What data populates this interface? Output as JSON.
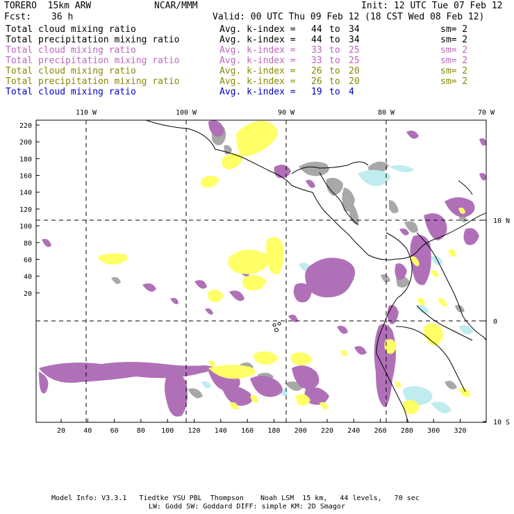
{
  "header": {
    "model": "TORERO  15km ARW",
    "org": "NCAR/MMM",
    "init": "Init: 12 UTC Tue 07 Feb 12",
    "fcst_label": "Fcst:",
    "fcst_value": "36 h",
    "valid": "Valid: 00 UTC Thu 09 Feb 12 (18 CST Wed 08 Feb 12)"
  },
  "legend": [
    {
      "field": "Total cloud mixing ratio",
      "kindex_label": "Avg. k-index =",
      "k_from": "44",
      "to": "to",
      "k_to": "34",
      "sm": "sm= 2",
      "color": "#000000"
    },
    {
      "field": "Total precipitation mixing ratio",
      "kindex_label": "Avg. k-index =",
      "k_from": "44",
      "to": "to",
      "k_to": "34",
      "sm": "sm= 2",
      "color": "#000000"
    },
    {
      "field": "Total cloud mixing ratio",
      "kindex_label": "Avg. k-index =",
      "k_from": "33",
      "to": "to",
      "k_to": "25",
      "sm": "sm= 2",
      "color": "#bb66bb"
    },
    {
      "field": "Total precipitation mixing ratio",
      "kindex_label": "Avg. k-index =",
      "k_from": "33",
      "to": "to",
      "k_to": "25",
      "sm": "sm= 2",
      "color": "#bb66bb"
    },
    {
      "field": "Total cloud mixing ratio",
      "kindex_label": "Avg. k-index =",
      "k_from": "26",
      "to": "to",
      "k_to": "20",
      "sm": "sm= 2",
      "color": "#888800"
    },
    {
      "field": "Total precipitation mixing ratio",
      "kindex_label": "Avg. k-index =",
      "k_from": "26",
      "to": "to",
      "k_to": "20",
      "sm": "sm= 2",
      "color": "#888800"
    },
    {
      "field": "Total cloud mixing ratio",
      "kindex_label": "Avg. k-index =",
      "k_from": "19",
      "to": "to",
      "k_to": "4",
      "sm": "",
      "color": "#0000cc"
    }
  ],
  "map": {
    "lon_labels": [
      "110 W",
      "100 W",
      "90 W",
      "80 W",
      "70 W"
    ],
    "lat_labels": [
      "10 N",
      "0",
      "10 S"
    ],
    "y_ticks": [
      "220",
      "200",
      "180",
      "160",
      "140",
      "120",
      "100",
      "80",
      "60",
      "40",
      "20"
    ],
    "x_ticks": [
      "20",
      "40",
      "60",
      "80",
      "100",
      "120",
      "140",
      "160",
      "180",
      "200",
      "220",
      "240",
      "260",
      "280",
      "300",
      "320"
    ],
    "colors": {
      "gray": "#a8a8a8",
      "purple": "#b070b8",
      "yellow": "#ffff66",
      "lightblue": "#c0ecf0"
    }
  },
  "footer": {
    "line1": "Model Info: V3.3.1   Tiedtke YSU PBL  Thompson    Noah LSM  15 km,   44 levels,   70 sec",
    "line2": "LW: Godd SW: Goddard DIFF: simple KM: 2D Smagor"
  }
}
